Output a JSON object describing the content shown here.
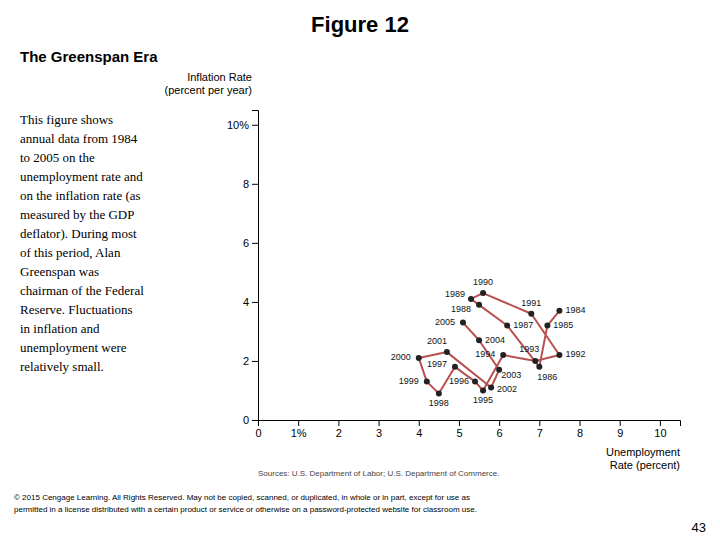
{
  "chart_data": {
    "type": "line",
    "title": "Figure 12",
    "subtitle": "The Greenspan Era",
    "xlabel": [
      "Unemployment",
      "Rate (percent)"
    ],
    "ylabel": [
      "Inflation Rate",
      "(percent per year)"
    ],
    "x": [
      7.5,
      7.2,
      7.0,
      6.2,
      5.5,
      5.3,
      5.6,
      6.8,
      7.5,
      6.9,
      6.1,
      5.6,
      5.4,
      4.9,
      4.5,
      4.2,
      4.0,
      4.7,
      5.8,
      6.0,
      5.5,
      5.1
    ],
    "values": [
      3.7,
      3.2,
      1.8,
      3.2,
      3.9,
      4.1,
      4.3,
      3.6,
      2.2,
      2.0,
      2.2,
      1.0,
      1.3,
      1.8,
      0.9,
      1.3,
      2.1,
      2.3,
      1.1,
      1.7,
      2.7,
      3.3
    ],
    "point_labels": [
      1984,
      1985,
      1986,
      1987,
      1988,
      1989,
      1990,
      1991,
      1992,
      1993,
      1994,
      1995,
      1996,
      1997,
      1998,
      1999,
      2000,
      2001,
      2002,
      2003,
      2004,
      2005
    ],
    "color": "#b85050",
    "marker": "circle",
    "line_style": "solid",
    "xlim": [
      0,
      10.5
    ],
    "ylim": [
      0,
      10.5
    ],
    "xticks": [
      0,
      {
        "value": 1,
        "label": "1%"
      },
      2,
      3,
      4,
      5,
      6,
      7,
      8,
      9,
      10
    ],
    "yticks": [
      0,
      2,
      4,
      6,
      8,
      {
        "value": 10,
        "label": "10%"
      }
    ],
    "grid": false,
    "description": [
      "This figure shows",
      "annual data from 1984",
      "to 2005 on the",
      "unemployment rate and",
      "on the inflation rate (as",
      "measured by the GDP",
      "deflator). During most",
      "of this period, Alan",
      "Greenspan was",
      "chairman of the Federal",
      "Reserve. Fluctuations",
      "in inflation and",
      "unemployment were",
      "relatively small."
    ],
    "source": "Sources: U.S. Department of Labor; U.S. Department of Commerce.",
    "footer": [
      "© 2015 Cengage Learning. All Rights Reserved. May not be copied, scanned, or duplicated, in whole or in part, except for use as",
      "permitted in a license distributed with a certain product or service or otherwise on a password-protected website for classroom use."
    ],
    "page_number": "43"
  }
}
